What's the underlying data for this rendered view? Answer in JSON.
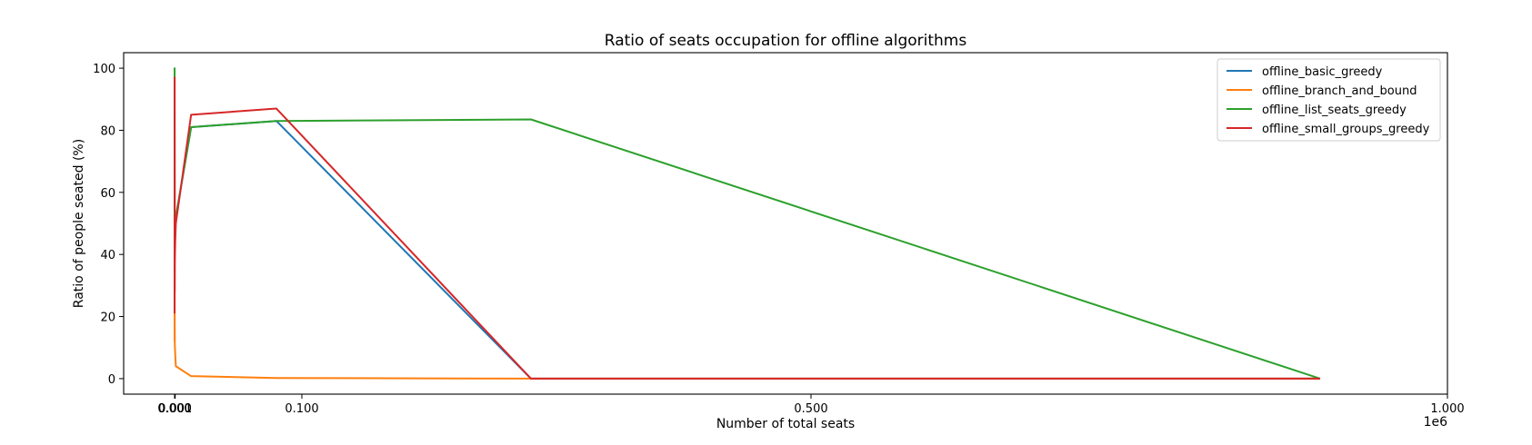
{
  "chart_data": {
    "type": "line",
    "title": "Ratio of seats occupation for offline algorithms",
    "xlabel": "Number of total seats",
    "ylabel": "Ratio of people seated (%)",
    "x_offset_label": "1e6",
    "xlim": [
      -0.04,
      1.0
    ],
    "ylim": [
      -5,
      105
    ],
    "xticks": [
      {
        "value": 0.0,
        "label": "0.000"
      },
      {
        "value": 0.0001,
        "label": "0.000"
      },
      {
        "value": 0.0002,
        "label": "0.000"
      },
      {
        "value": 0.0005,
        "label": "0.001"
      },
      {
        "value": 0.1,
        "label": "0.100"
      },
      {
        "value": 0.5,
        "label": "0.500"
      },
      {
        "value": 1.0,
        "label": "1.000"
      }
    ],
    "yticks": [
      {
        "value": 0,
        "label": "0"
      },
      {
        "value": 20,
        "label": "20"
      },
      {
        "value": 40,
        "label": "40"
      },
      {
        "value": 60,
        "label": "60"
      },
      {
        "value": 80,
        "label": "80"
      },
      {
        "value": 100,
        "label": "100"
      }
    ],
    "grid": false,
    "legend_position": "top-right",
    "series": [
      {
        "name": "offline_basic_greedy",
        "color": "#1f77b4",
        "x": [
          1e-05,
          3e-05,
          0.0001,
          0.0002,
          0.0005,
          0.001,
          0.013,
          0.08,
          0.28,
          0.9
        ],
        "y": [
          20,
          97,
          40,
          42,
          48,
          52,
          81,
          83,
          0,
          0
        ]
      },
      {
        "name": "offline_branch_and_bound",
        "color": "#ff7f0e",
        "x": [
          1e-05,
          3e-05,
          0.0001,
          0.0002,
          0.0005,
          0.001,
          0.013,
          0.08,
          0.28,
          0.9
        ],
        "y": [
          12,
          97,
          20,
          11,
          8,
          4,
          0.8,
          0.2,
          0,
          0
        ]
      },
      {
        "name": "offline_list_seats_greedy",
        "color": "#2ca02c",
        "x": [
          1e-05,
          3e-05,
          0.0001,
          0.0002,
          0.0005,
          0.001,
          0.013,
          0.08,
          0.28,
          0.9
        ],
        "y": [
          45,
          100,
          43,
          45,
          48,
          52,
          81,
          83,
          83.5,
          0
        ]
      },
      {
        "name": "offline_small_groups_greedy",
        "color": "#d62728",
        "x": [
          1e-05,
          3e-05,
          0.0001,
          0.0002,
          0.0005,
          0.001,
          0.013,
          0.08,
          0.28,
          0.9
        ],
        "y": [
          21,
          97,
          28,
          38,
          44,
          50,
          85,
          87,
          0,
          0
        ]
      }
    ]
  }
}
